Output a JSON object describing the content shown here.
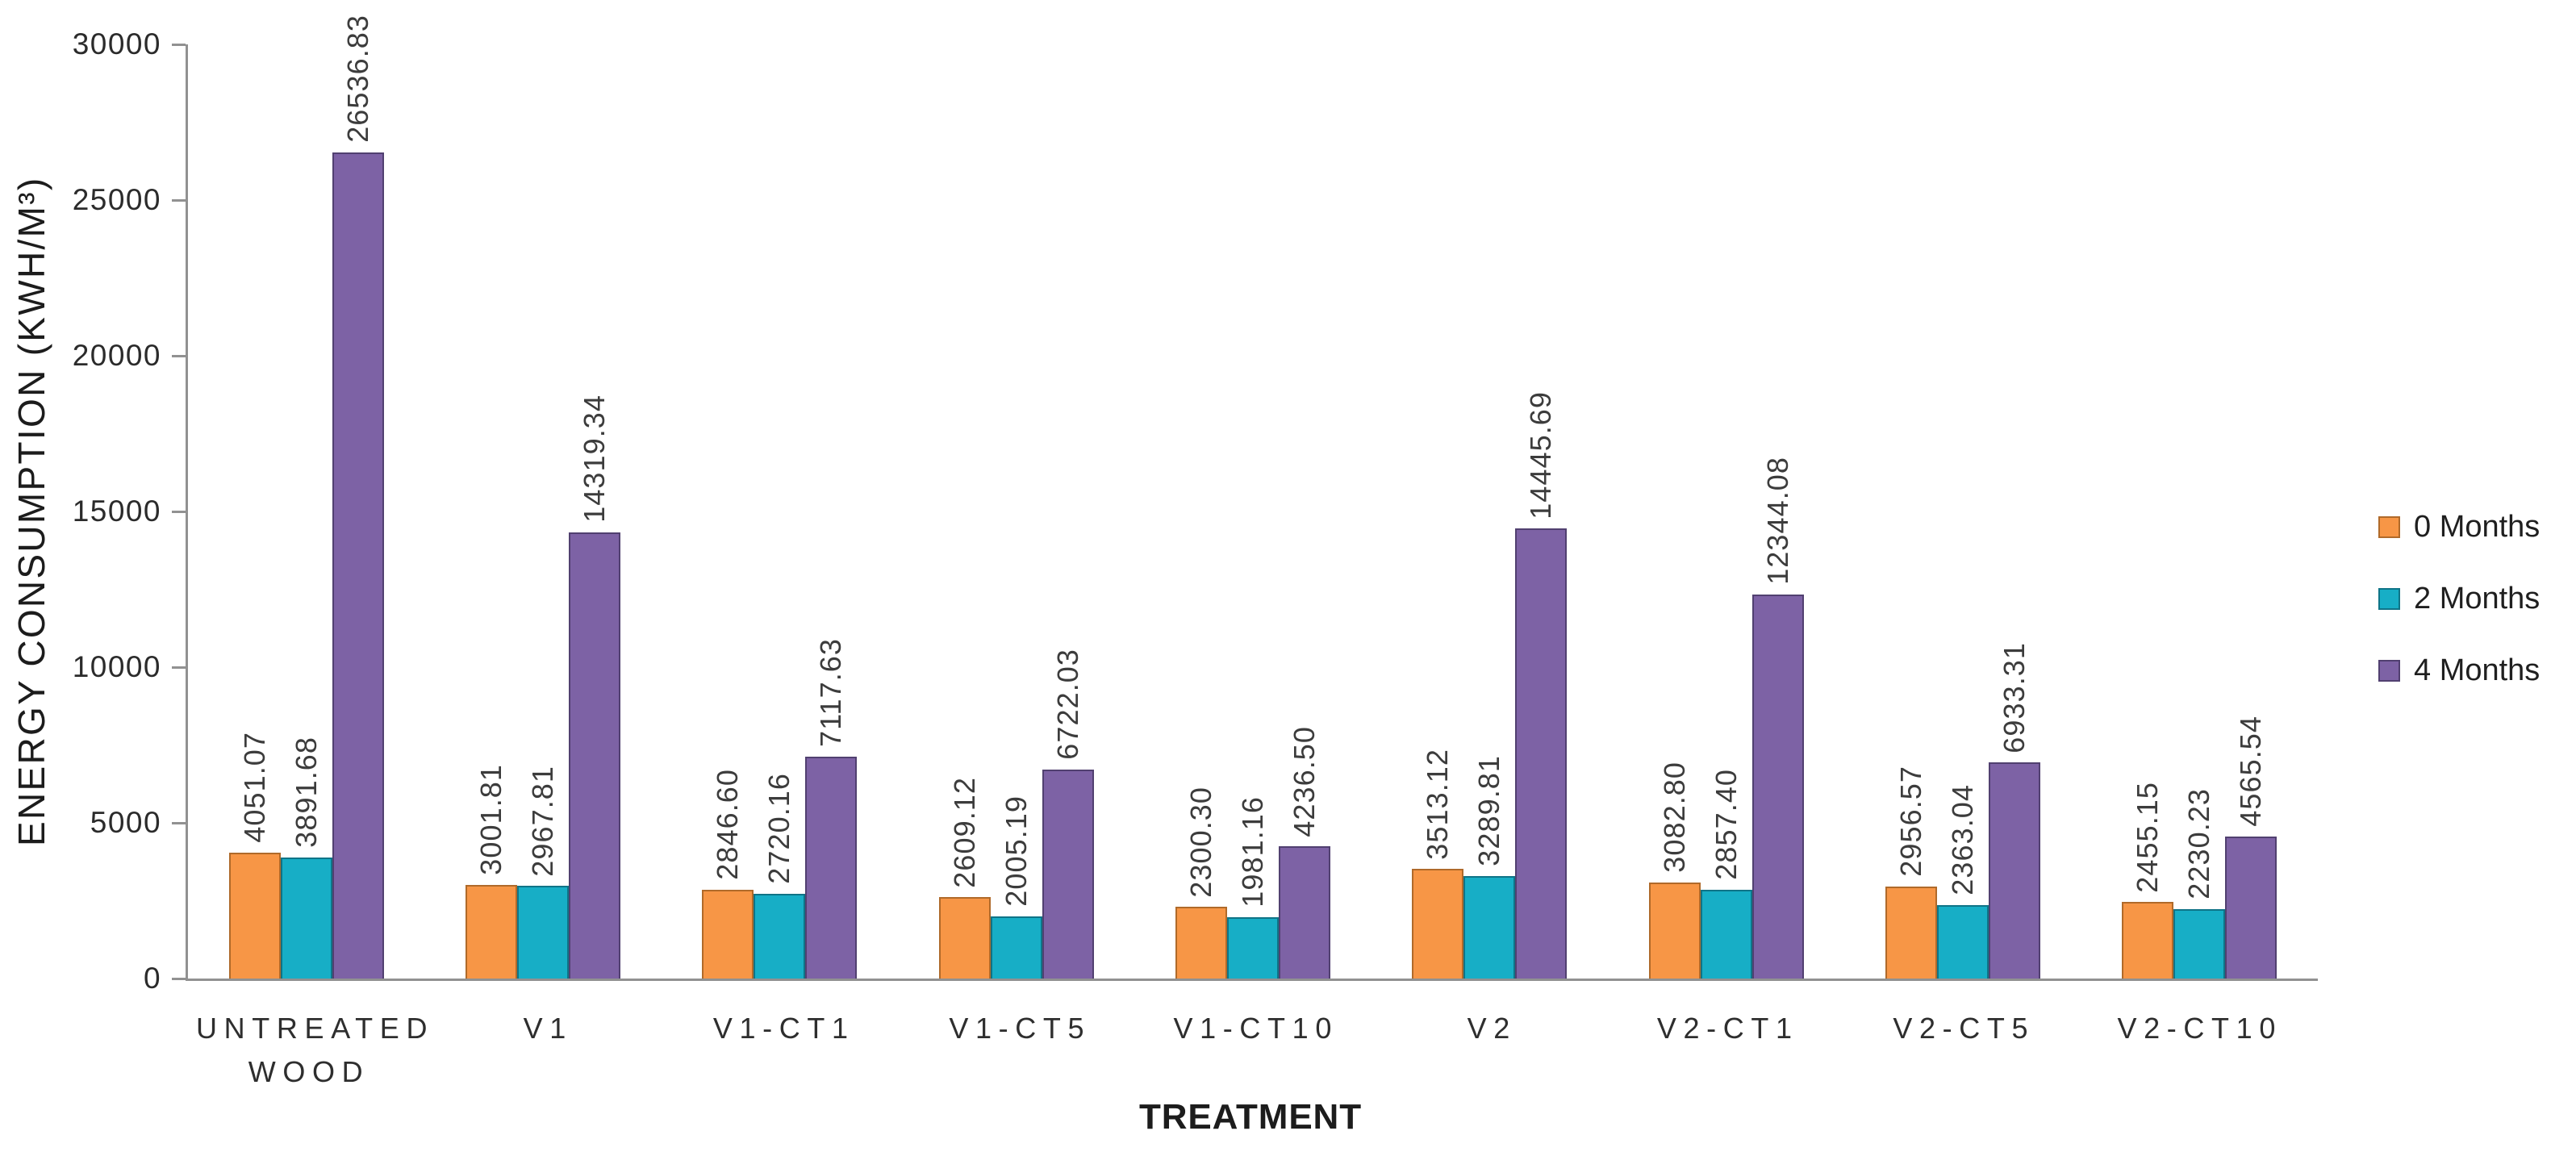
{
  "chart_data": {
    "type": "bar",
    "title": "",
    "xlabel": "TREATMENT",
    "ylabel": "ENERGY CONSUMPTION (KWH/M³)",
    "ylim": [
      0,
      30000
    ],
    "ytick_step": 5000,
    "yticks": [
      0,
      5000,
      10000,
      15000,
      20000,
      25000,
      30000
    ],
    "grid": false,
    "legend_position": "right",
    "background_color": "#ffffff",
    "axis_color": "#919191",
    "categories": [
      "UNTREATED WOOD",
      "V1",
      "V1-CT1",
      "V1-CT5",
      "V1-CT10",
      "V2",
      "V2-CT1",
      "V2-CT5",
      "V2-CT10"
    ],
    "series": [
      {
        "name": "0 Months",
        "color": "#F79646",
        "border_color": "#B06A2A",
        "values": [
          4051.07,
          3001.81,
          2846.6,
          2609.12,
          2300.3,
          3513.12,
          3082.8,
          2956.57,
          2455.15
        ]
      },
      {
        "name": "2 Months",
        "color": "#17AEC6",
        "border_color": "#0F7487",
        "values": [
          3891.68,
          2967.81,
          2720.16,
          2005.19,
          1981.16,
          3289.81,
          2857.4,
          2363.04,
          2230.23
        ]
      },
      {
        "name": "4 Months",
        "color": "#7D62A5",
        "border_color": "#514070",
        "values": [
          26536.83,
          14319.34,
          7117.63,
          6722.03,
          4236.5,
          14445.69,
          12344.08,
          6933.31,
          4565.54
        ]
      }
    ],
    "data_label_decimals": 2
  }
}
